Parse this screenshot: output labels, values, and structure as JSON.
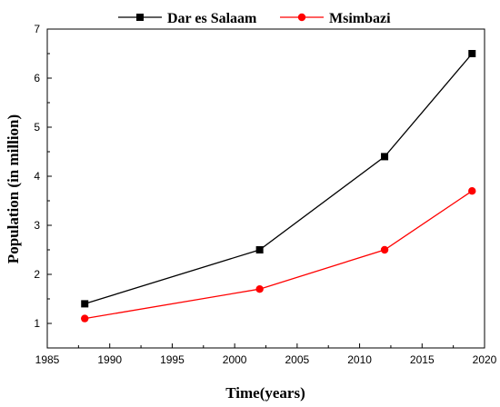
{
  "chart_data": {
    "type": "line",
    "xlabel": "Time(years)",
    "ylabel": "Population (in million)",
    "xlim": [
      1985,
      2020
    ],
    "ylim": [
      0.5,
      7
    ],
    "xticks": [
      1985,
      1990,
      1995,
      2000,
      2005,
      2010,
      2015,
      2020
    ],
    "yticks": [
      1,
      2,
      3,
      4,
      5,
      6,
      7
    ],
    "legend_position": "top-center",
    "grid": false,
    "x": [
      1988,
      2002,
      2012,
      2019
    ],
    "series": [
      {
        "name": "Dar es Salaam",
        "values": [
          1.4,
          2.5,
          4.4,
          6.5
        ],
        "color": "#000000",
        "marker": "square"
      },
      {
        "name": "Msimbazi",
        "values": [
          1.1,
          1.7,
          2.5,
          3.7
        ],
        "color": "#ff0000",
        "marker": "circle"
      }
    ]
  }
}
